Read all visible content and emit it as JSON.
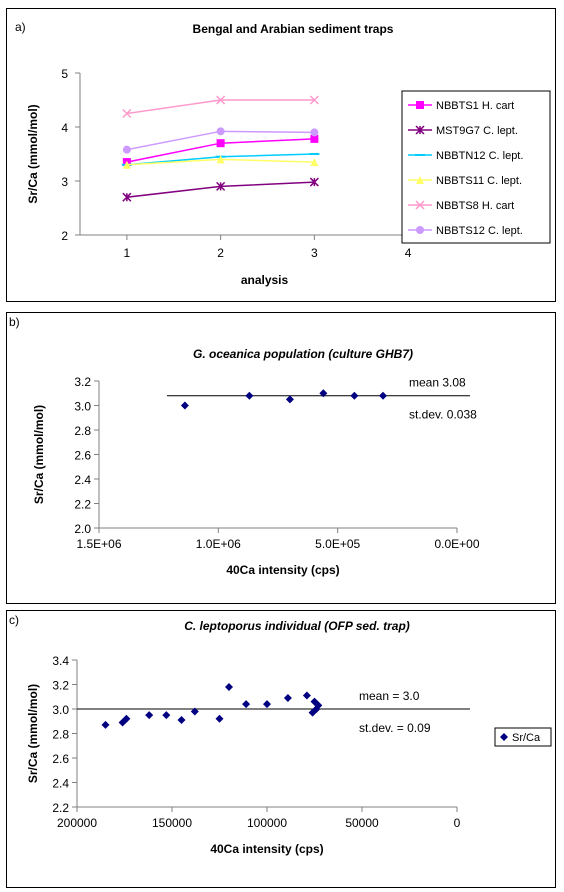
{
  "chart_data": [
    {
      "panel_label": "a)",
      "type": "line",
      "title": "Bengal and Arabian sediment traps",
      "xlabel": "analysis",
      "ylabel": "Sr/Ca (mmol/mol)",
      "xlim": [
        0.5,
        4.5
      ],
      "ylim": [
        2,
        5
      ],
      "x_ticks": [
        "1",
        "2",
        "3",
        "4"
      ],
      "y_ticks": [
        "2",
        "3",
        "4",
        "5"
      ],
      "legend_position": "right",
      "x": [
        1,
        2,
        3
      ],
      "series": [
        {
          "name": "NBBTS1 H. cart",
          "values": [
            3.35,
            3.7,
            3.78
          ],
          "color": "#ff00ff",
          "marker": "square"
        },
        {
          "name": "MST9G7 C. lept.",
          "values": [
            2.7,
            2.9,
            2.98
          ],
          "color": "#800080",
          "marker": "star"
        },
        {
          "name": "NBBTN12 C. lept.",
          "values": [
            3.3,
            3.45,
            3.5
          ],
          "color": "#00ccff",
          "marker": "dash"
        },
        {
          "name": "NBBTS11 C. lept.",
          "values": [
            3.3,
            3.4,
            3.35
          ],
          "color": "#ffff66",
          "marker": "triangle"
        },
        {
          "name": "NBBTS8 H. cart",
          "values": [
            4.25,
            4.5,
            4.5
          ],
          "color": "#ff99cc",
          "marker": "x"
        },
        {
          "name": "NBBTS12 C. lept.",
          "values": [
            3.58,
            3.92,
            3.9
          ],
          "color": "#cc99ff",
          "marker": "circle"
        }
      ]
    },
    {
      "panel_label": "b)",
      "type": "scatter",
      "title": "G. oceanica population (culture GHB7)",
      "xlabel": "40Ca intensity (cps)",
      "ylabel": "Sr/Ca (mmol/mol)",
      "xlim": [
        1500000,
        0
      ],
      "ylim": [
        2.0,
        3.2
      ],
      "x_ticks": [
        "1.5E+06",
        "1.0E+06",
        "5.0E+05",
        "0.0E+00"
      ],
      "y_ticks": [
        "2.0",
        "2.2",
        "2.4",
        "2.6",
        "2.8",
        "3.0",
        "3.2"
      ],
      "mean_line": 3.08,
      "annotations": {
        "mean": "mean 3.08",
        "stdev": "st.dev. 0.038"
      },
      "points": [
        {
          "x": 1140000,
          "y": 3.0
        },
        {
          "x": 870000,
          "y": 3.08
        },
        {
          "x": 700000,
          "y": 3.05
        },
        {
          "x": 560000,
          "y": 3.1
        },
        {
          "x": 430000,
          "y": 3.08
        },
        {
          "x": 310000,
          "y": 3.08
        }
      ]
    },
    {
      "panel_label": "c)",
      "type": "scatter",
      "title": "C. leptoporus individual (OFP sed. trap)",
      "xlabel": "40Ca intensity (cps)",
      "ylabel": "Sr/Ca (mmol/mol)",
      "xlim": [
        200000,
        0
      ],
      "ylim": [
        2.2,
        3.4
      ],
      "x_ticks": [
        "200000",
        "150000",
        "100000",
        "50000",
        "0"
      ],
      "y_ticks": [
        "2.2",
        "2.4",
        "2.6",
        "2.8",
        "3.0",
        "3.2",
        "3.4"
      ],
      "mean_line": 3.0,
      "annotations": {
        "mean": "mean = 3.0",
        "stdev": "st.dev. = 0.09"
      },
      "legend_position": "right",
      "series_name": "Sr/Ca",
      "points": [
        {
          "x": 185000,
          "y": 2.87
        },
        {
          "x": 176000,
          "y": 2.89
        },
        {
          "x": 174000,
          "y": 2.92
        },
        {
          "x": 162000,
          "y": 2.95
        },
        {
          "x": 153000,
          "y": 2.95
        },
        {
          "x": 145000,
          "y": 2.91
        },
        {
          "x": 138000,
          "y": 2.98
        },
        {
          "x": 125000,
          "y": 2.92
        },
        {
          "x": 120000,
          "y": 3.18
        },
        {
          "x": 111000,
          "y": 3.04
        },
        {
          "x": 100000,
          "y": 3.04
        },
        {
          "x": 89000,
          "y": 3.09
        },
        {
          "x": 79000,
          "y": 3.11
        },
        {
          "x": 76000,
          "y": 2.97
        },
        {
          "x": 75000,
          "y": 3.06
        },
        {
          "x": 74000,
          "y": 3.0
        },
        {
          "x": 73000,
          "y": 3.03
        }
      ]
    }
  ],
  "colors": {
    "point": "#000080",
    "axis": "#808080",
    "mean_line": "#000000"
  }
}
